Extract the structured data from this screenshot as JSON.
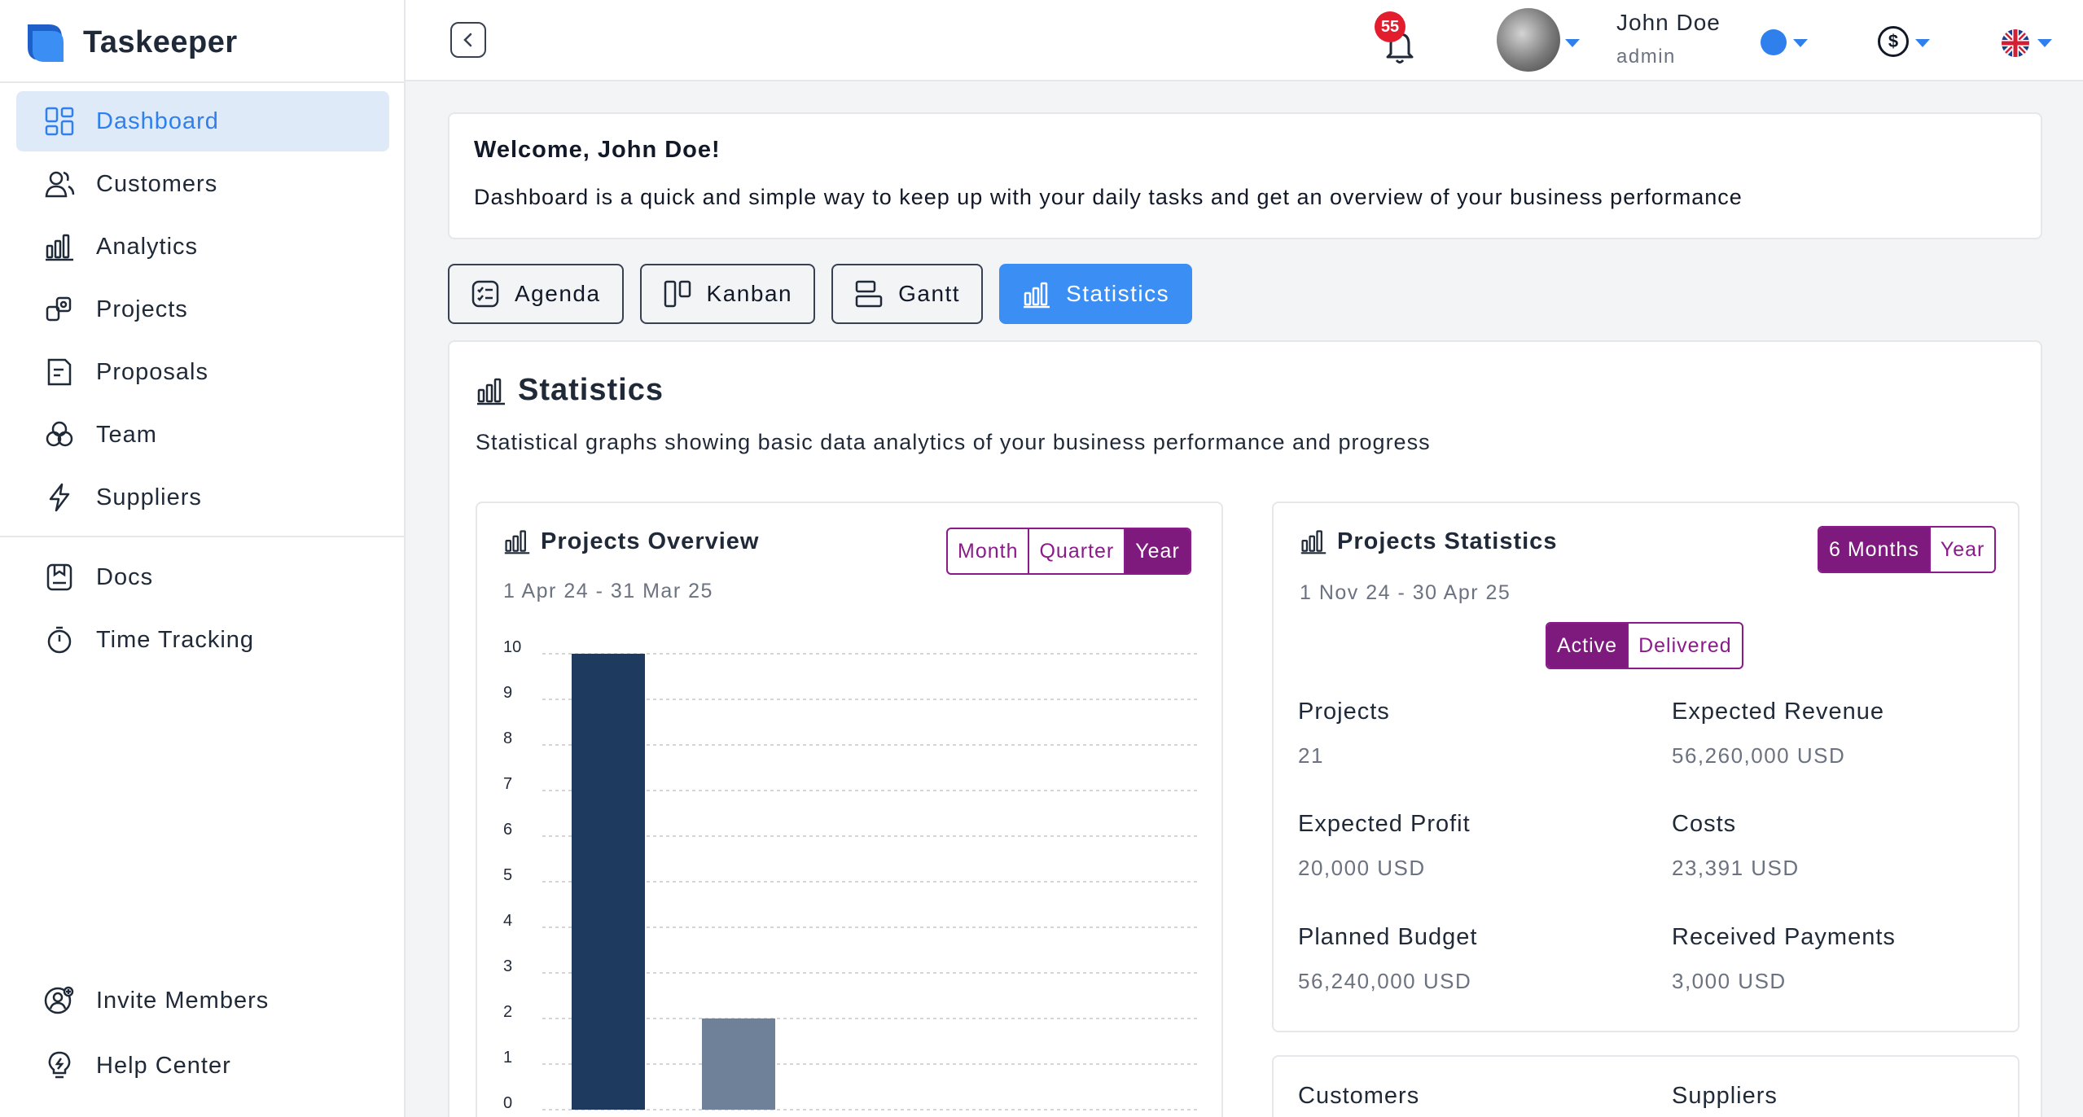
{
  "brand": {
    "name": "Taskeeper"
  },
  "sidebar": {
    "items": [
      {
        "label": "Dashboard",
        "icon": "dashboard-icon",
        "active": true
      },
      {
        "label": "Customers",
        "icon": "customers-icon"
      },
      {
        "label": "Analytics",
        "icon": "analytics-icon"
      },
      {
        "label": "Projects",
        "icon": "projects-icon"
      },
      {
        "label": "Proposals",
        "icon": "proposals-icon"
      },
      {
        "label": "Team",
        "icon": "team-icon"
      },
      {
        "label": "Suppliers",
        "icon": "suppliers-icon"
      }
    ],
    "items2": [
      {
        "label": "Docs",
        "icon": "docs-icon"
      },
      {
        "label": "Time Tracking",
        "icon": "stopwatch-icon"
      }
    ],
    "bottom": [
      {
        "label": "Invite Members",
        "icon": "invite-icon"
      },
      {
        "label": "Help Center",
        "icon": "lightbulb-icon"
      }
    ]
  },
  "header": {
    "notifications": "55",
    "user_name": "John Doe",
    "user_role": "admin",
    "currency_symbol": "$",
    "accent": "#2f80ed"
  },
  "welcome": {
    "title": "Welcome, John Doe!",
    "text": "Dashboard is a quick and simple way to keep up with your daily tasks and get an overview of your business performance"
  },
  "tabs": [
    {
      "label": "Agenda",
      "icon": "agenda-icon"
    },
    {
      "label": "Kanban",
      "icon": "kanban-icon"
    },
    {
      "label": "Gantt",
      "icon": "gantt-icon"
    },
    {
      "label": "Statistics",
      "icon": "statistics-icon",
      "active": true
    }
  ],
  "statistics": {
    "title": "Statistics",
    "subtitle": "Statistical graphs showing basic data analytics of your business performance and progress"
  },
  "projects_overview": {
    "title": "Projects Overview",
    "range": "1 Apr 24 - 31 Mar 25",
    "options": [
      "Month",
      "Quarter",
      "Year"
    ],
    "selected": "Year"
  },
  "projects_statistics": {
    "title": "Projects Statistics",
    "range": "1 Nov 24 - 30 Apr 25",
    "options": [
      "6 Months",
      "Year"
    ],
    "selected": "6 Months",
    "status_options": [
      "Active",
      "Delivered"
    ],
    "status_selected": "Active",
    "stats": [
      {
        "label": "Projects",
        "value": "21"
      },
      {
        "label": "Expected Revenue",
        "value": "56,260,000 USD"
      },
      {
        "label": "Expected Profit",
        "value": "20,000 USD"
      },
      {
        "label": "Costs",
        "value": "23,391 USD"
      },
      {
        "label": "Planned Budget",
        "value": "56,240,000 USD"
      },
      {
        "label": "Received Payments",
        "value": "3,000 USD"
      }
    ]
  },
  "lower_card": {
    "left_label": "Customers",
    "right_label": "Suppliers"
  },
  "chart_data": {
    "type": "bar",
    "categories": [
      "",
      ""
    ],
    "values": [
      10,
      2
    ],
    "colors": [
      "#1f3a5f",
      "#6e8199"
    ],
    "yticks": [
      0,
      1,
      2,
      3,
      4,
      5,
      6,
      7,
      8,
      9,
      10
    ],
    "ylim": [
      0,
      10
    ],
    "grid": true
  },
  "colors": {
    "purple": "#7e1a7e",
    "blue": "#3b8ef3"
  }
}
